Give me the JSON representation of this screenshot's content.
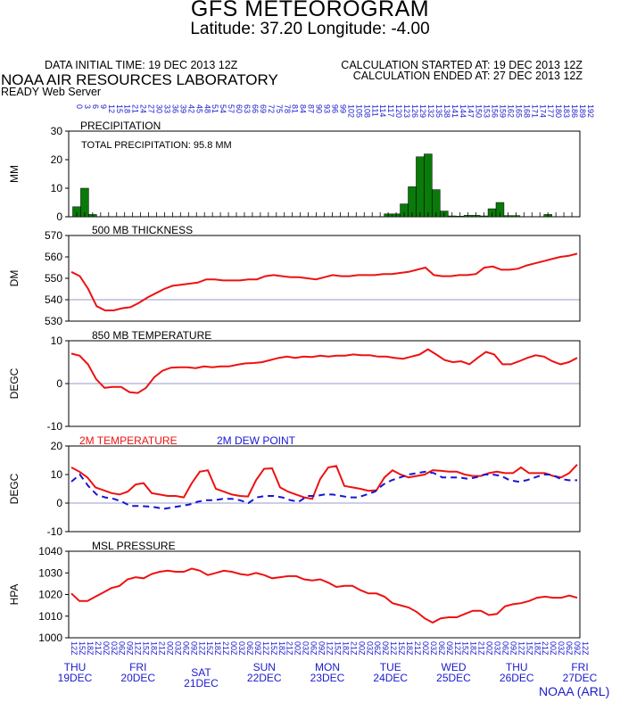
{
  "header": {
    "title": "GFS METEOROGRAM",
    "subtitle": "Latitude: 37.20 Longitude:  -4.00",
    "initial_time": "DATA INITIAL TIME: 19 DEC 2013 12Z",
    "calc_started": "CALCULATION STARTED AT: 19 DEC 2013 12Z",
    "calc_ended": "CALCULATION ENDED AT: 27 DEC 2013 12Z",
    "lab": "NOAA AIR RESOURCES LABORATORY",
    "server": "READY Web Server",
    "credit": "NOAA (ARL)"
  },
  "colors": {
    "red": "#ee1111",
    "blue": "#1616d6",
    "green": "#0a7a0a",
    "grid": "#9a9acc",
    "axis_label": "#1a1acd"
  },
  "chart_data": [
    {
      "type": "bar",
      "title": "PRECIPITATION",
      "annotation": "TOTAL PRECIPITATION:  95.8 MM",
      "ylabel": "MM",
      "ylim": [
        0,
        30
      ],
      "yticks": [
        0,
        10,
        20,
        30
      ],
      "forecast_hours": [
        0,
        3,
        6,
        9,
        12,
        15,
        18,
        21,
        24,
        27,
        30,
        33,
        36,
        39,
        42,
        45,
        48,
        51,
        54,
        57,
        60,
        63,
        66,
        69,
        72,
        75,
        78,
        81,
        84,
        87,
        90,
        93,
        96,
        99,
        102,
        105,
        108,
        111,
        114,
        117,
        120,
        123,
        126,
        129,
        132,
        135,
        138,
        141,
        144,
        147,
        150,
        153,
        156,
        159,
        162,
        165,
        168,
        171,
        174,
        177,
        180,
        183,
        186,
        189,
        192
      ],
      "values": [
        0,
        3.5,
        10,
        0.8,
        0,
        0,
        0,
        0,
        0,
        0,
        0,
        0,
        0,
        0,
        0,
        0,
        0,
        0,
        0,
        0,
        0,
        0,
        0,
        0,
        0,
        0,
        0,
        0,
        0,
        0,
        0,
        0,
        0,
        0,
        0,
        0,
        0,
        0,
        0,
        0,
        1,
        1,
        4.5,
        10.5,
        21,
        22,
        9.5,
        2,
        0.3,
        0.2,
        0.5,
        0.5,
        0.3,
        2.8,
        5,
        0.4,
        0.4,
        0,
        0,
        0,
        0.8,
        0,
        0,
        0,
        0
      ]
    },
    {
      "type": "line",
      "title": "500 MB  THICKNESS",
      "ylabel": "DM",
      "ylim": [
        530,
        570
      ],
      "yticks": [
        530,
        540,
        550,
        560,
        570
      ],
      "gridline": 540,
      "series": [
        {
          "color": "red",
          "values": [
            553,
            551,
            545,
            537,
            535,
            535,
            536,
            536.5,
            538.5,
            541,
            543,
            545,
            546.5,
            547,
            547.5,
            548,
            549.5,
            549.5,
            549,
            549,
            549,
            549.5,
            549.5,
            551,
            551.5,
            551,
            550.5,
            550.5,
            550,
            549.5,
            550.5,
            551.5,
            551,
            551,
            551.5,
            551.5,
            551.5,
            552,
            552,
            552.5,
            553,
            554,
            555,
            551.5,
            551,
            551,
            551.5,
            551.5,
            552,
            555,
            555.5,
            554,
            554,
            554.5,
            556,
            557,
            558,
            559,
            560,
            560.5,
            561.5
          ]
        }
      ]
    },
    {
      "type": "line",
      "title": "850 MB  TEMPERATURE",
      "ylabel": "DEGC",
      "ylim": [
        -10,
        10
      ],
      "yticks": [
        -10,
        0,
        10
      ],
      "gridline": 0,
      "series": [
        {
          "color": "red",
          "values": [
            7,
            6.5,
            4.5,
            1,
            -1,
            -0.8,
            -0.8,
            -2,
            -2.2,
            -1,
            1.5,
            3,
            3.7,
            3.8,
            3.8,
            3.6,
            4,
            3.8,
            4,
            4,
            4.4,
            4.7,
            4.8,
            5,
            5.5,
            6,
            6.3,
            6,
            6.3,
            6.2,
            6.5,
            6.3,
            6.5,
            6.5,
            6.8,
            6.6,
            6.6,
            6.3,
            6.3,
            6,
            5.8,
            6.3,
            6.8,
            8,
            6.8,
            5.5,
            5,
            5.2,
            4.5,
            6,
            7.4,
            6.8,
            4.5,
            4.5,
            5.2,
            6,
            6.6,
            6.3,
            5.2,
            4.5,
            5,
            6
          ]
        }
      ]
    },
    {
      "type": "line",
      "title": "2M TEMPERATURE / 2M  DEW POINT",
      "legend": [
        {
          "label": "2M TEMPERATURE",
          "color": "red"
        },
        {
          "label": "2M  DEW POINT",
          "color": "blue"
        }
      ],
      "ylabel": "DEGC",
      "ylim": [
        -10,
        20
      ],
      "yticks": [
        -10,
        0,
        10,
        20
      ],
      "gridline": 0,
      "series": [
        {
          "name": "2M TEMPERATURE",
          "color": "red",
          "style": "solid",
          "values": [
            12.5,
            11,
            9,
            5.5,
            4.5,
            3.5,
            3,
            4,
            6.5,
            7,
            3.5,
            3,
            2.5,
            2.5,
            2,
            7,
            11,
            11.5,
            5,
            4,
            3,
            2.5,
            2.3,
            8,
            12,
            12.2,
            5.5,
            4,
            3,
            2,
            1.5,
            8.5,
            12.5,
            13,
            6,
            5.5,
            5,
            4.3,
            4.5,
            9,
            11.5,
            10,
            9,
            9.5,
            10,
            11.5,
            11.3,
            11,
            11,
            10,
            9.5,
            9.5,
            10.5,
            11,
            10.5,
            10.5,
            12.5,
            10.5,
            10.5,
            10.5,
            9.5,
            9,
            10.5,
            13.5
          ]
        },
        {
          "name": "2M  DEW POINT",
          "color": "blue",
          "style": "dashed",
          "values": [
            7.5,
            10,
            6,
            3,
            2,
            1.5,
            0.5,
            -1,
            -1,
            -1.2,
            -1.5,
            -2,
            -1.5,
            -1,
            -0.5,
            0.5,
            1,
            1,
            1.5,
            1.5,
            1,
            0,
            2,
            2.5,
            2.5,
            2,
            1,
            0.5,
            2.5,
            2.5,
            3,
            3,
            2.5,
            2,
            2,
            3,
            4,
            6.5,
            8,
            9,
            10,
            10.5,
            11,
            10.5,
            9,
            9,
            9,
            8.5,
            9,
            10,
            10,
            9.5,
            8,
            7.5,
            8,
            9,
            10,
            10,
            8.5,
            8,
            8
          ]
        }
      ]
    },
    {
      "type": "line",
      "title": "MSL PRESSURE",
      "ylabel": "HPA",
      "ylim": [
        1000,
        1040
      ],
      "yticks": [
        1000,
        1010,
        1020,
        1030,
        1040
      ],
      "series": [
        {
          "color": "red",
          "values": [
            1020.5,
            1017,
            1017,
            1019,
            1021,
            1023,
            1024,
            1027,
            1028,
            1027.5,
            1029.5,
            1030.5,
            1031,
            1030.5,
            1030.5,
            1032,
            1031,
            1029,
            1030,
            1031,
            1030.5,
            1029.5,
            1029,
            1030,
            1029,
            1027.5,
            1028,
            1028.5,
            1028.5,
            1027,
            1026.5,
            1027,
            1025.5,
            1023.5,
            1024,
            1024,
            1022,
            1020.5,
            1020.5,
            1019,
            1016,
            1015,
            1014,
            1012,
            1009,
            1007,
            1009,
            1009.5,
            1009.5,
            1011,
            1012.5,
            1012.5,
            1010.5,
            1011,
            1014.5,
            1015.5,
            1016,
            1017,
            1018.5,
            1019,
            1018.5,
            1018.5,
            1019.5,
            1018.5
          ]
        }
      ]
    }
  ],
  "x_axis": {
    "forecast_hours_top": [
      "0",
      "3",
      "6",
      "9",
      "12",
      "15",
      "18",
      "21",
      "24",
      "27",
      "30",
      "33",
      "36",
      "39",
      "42",
      "45",
      "48",
      "51",
      "54",
      "57",
      "60",
      "63",
      "66",
      "69",
      "72",
      "75",
      "78",
      "81",
      "84",
      "87",
      "90",
      "93",
      "96",
      "99",
      "102",
      "105",
      "108",
      "111",
      "114",
      "117",
      "120",
      "123",
      "126",
      "129",
      "132",
      "135",
      "138",
      "141",
      "144",
      "147",
      "150",
      "153",
      "156",
      "159",
      "162",
      "165",
      "168",
      "171",
      "174",
      "177",
      "180",
      "183",
      "186",
      "189",
      "192"
    ],
    "hour_labels_bottom": [
      "12Z",
      "15Z",
      "18Z",
      "21Z",
      "00Z",
      "03Z",
      "06Z",
      "09Z",
      "12Z",
      "15Z",
      "18Z",
      "21Z",
      "00Z",
      "03Z",
      "06Z",
      "09Z",
      "12Z",
      "15Z",
      "18Z",
      "21Z",
      "00Z",
      "03Z",
      "06Z",
      "09Z",
      "12Z",
      "15Z",
      "18Z",
      "21Z",
      "00Z",
      "03Z",
      "06Z",
      "09Z",
      "12Z",
      "15Z",
      "18Z",
      "21Z",
      "00Z",
      "03Z",
      "06Z",
      "09Z",
      "12Z",
      "15Z",
      "18Z",
      "21Z",
      "00Z",
      "03Z",
      "06Z",
      "09Z",
      "12Z",
      "15Z",
      "18Z",
      "21Z",
      "00Z",
      "03Z",
      "06Z",
      "09Z",
      "12Z",
      "15Z",
      "18Z",
      "21Z",
      "00Z",
      "03Z",
      "06Z",
      "09Z",
      "12Z"
    ],
    "days": [
      {
        "dow": "THU",
        "date": "19DEC"
      },
      {
        "dow": "FRI",
        "date": "20DEC"
      },
      {
        "dow": "SAT",
        "date": "21DEC"
      },
      {
        "dow": "SUN",
        "date": "22DEC"
      },
      {
        "dow": "MON",
        "date": "23DEC"
      },
      {
        "dow": "TUE",
        "date": "24DEC"
      },
      {
        "dow": "WED",
        "date": "25DEC"
      },
      {
        "dow": "THU",
        "date": "26DEC"
      },
      {
        "dow": "FRI",
        "date": "27DEC"
      }
    ]
  }
}
